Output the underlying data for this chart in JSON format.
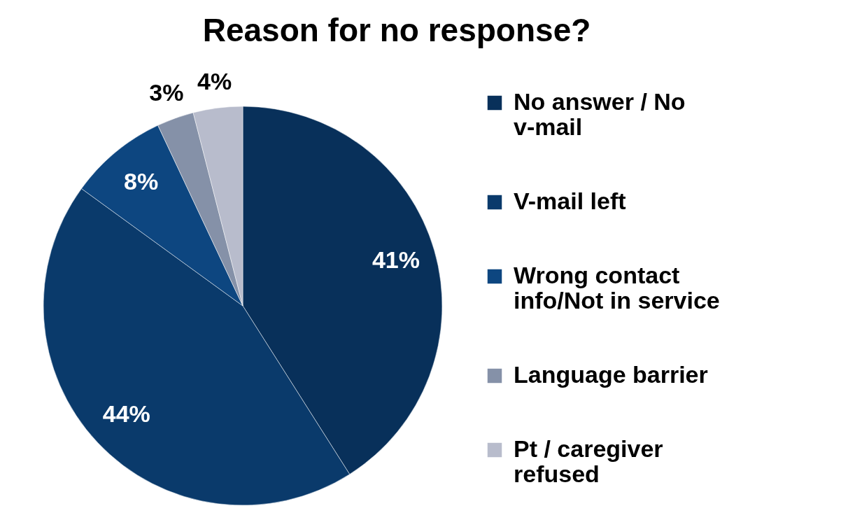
{
  "chart_data": {
    "type": "pie",
    "title": "Reason for no response?",
    "categories": [
      "No answer / No v-mail",
      "V-mail left",
      "Wrong contact info/Not in service",
      "Language barrier",
      "Pt / caregiver refused"
    ],
    "values": [
      41,
      44,
      8,
      3,
      4
    ],
    "colors": [
      "#08305a",
      "#0a3a6b",
      "#0d4680",
      "#8591a8",
      "#b8bccc"
    ],
    "value_labels": [
      "41%",
      "44%",
      "8%",
      "3%",
      "4%"
    ],
    "legend": "right"
  }
}
